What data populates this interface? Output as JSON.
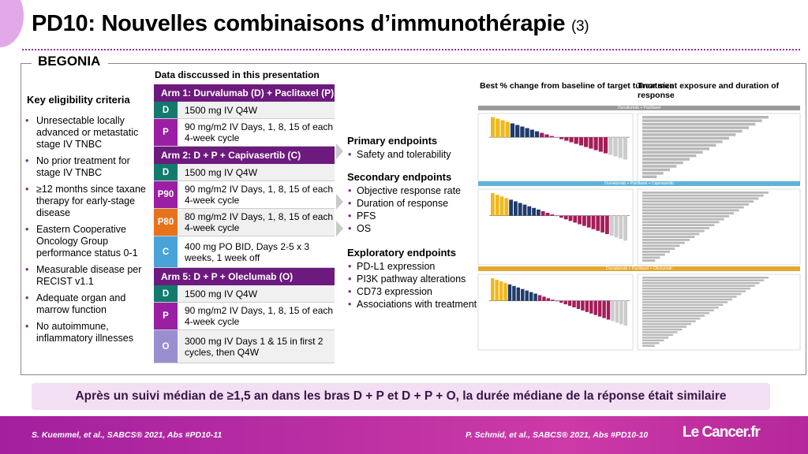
{
  "title": {
    "main": "PD10: Nouvelles combinaisons d’immunothérapie",
    "suffix": "(3)"
  },
  "study": "BEGONIA",
  "criteria": {
    "heading": "Key eligibility criteria",
    "items": [
      "Unresectable locally advanced or metastatic stage IV TNBC",
      "No prior treatment for stage IV TNBC",
      "≥12 months since taxane therapy for early-stage disease",
      "Eastern Cooperative Oncology Group performance status 0-1",
      "Measurable disease per RECIST v1.1",
      "Adequate organ and marrow function",
      "No autoimmune, inflammatory illnesses"
    ]
  },
  "data_title": "Data disccussed in this presentation",
  "arms": [
    {
      "header": "Arm 1: Durvalumab (D) + Paclitaxel (P)",
      "rows": [
        {
          "badge": "D",
          "color": "#137a6e",
          "text": "1500 mg IV Q4W"
        },
        {
          "badge": "P",
          "color": "#9b1fa3",
          "text": "90 mg/m2 IV Days, 1, 8, 15 of each 4-week cycle"
        }
      ]
    },
    {
      "header": "Arm 2: D + P + Capivasertib (C)",
      "rows": [
        {
          "badge": "D",
          "color": "#137a6e",
          "text": "1500 mg IV Q4W"
        },
        {
          "badge": "P90",
          "color": "#9b1fa3",
          "text": "90 mg/m2 IV Days, 1, 8, 15 of each 4-week cycle"
        },
        {
          "badge": "P80",
          "color": "#e8721c",
          "text": "80 mg/m2 IV Days, 1, 8, 15 of each 4-week cycle"
        },
        {
          "badge": "C",
          "color": "#4aa3d8",
          "text": "400 mg PO BID, Days 2-5 x 3 weeks, 1 week off"
        }
      ]
    },
    {
      "header": "Arm 5: D + P + Oleclumab (O)",
      "rows": [
        {
          "badge": "D",
          "color": "#137a6e",
          "text": "1500 mg IV Q4W"
        },
        {
          "badge": "P",
          "color": "#9b1fa3",
          "text": "90 mg/m2 IV Days, 1, 8, 15 of each 4-week cycle"
        },
        {
          "badge": "O",
          "color": "#9a8ed0",
          "text": "3000 mg IV Days 1 & 15 in first 2 cycles, then Q4W"
        }
      ]
    }
  ],
  "endpoints": [
    {
      "heading": "Primary endpoints",
      "items": [
        "Safety and tolerability"
      ]
    },
    {
      "heading": "Secondary endpoints",
      "items": [
        "Objective response rate",
        "Duration of response",
        "PFS",
        "OS"
      ]
    },
    {
      "heading": "Exploratory endpoints",
      "items": [
        "PD-L1 expression",
        "PI3K pathway alterations",
        "CD73 expression",
        "Associations with treatment benefit"
      ]
    }
  ],
  "charts": {
    "left_title": "Best % change from baseline of target tumor size",
    "right_title": "Treatment exposure and duration of response",
    "bands": [
      "Durvalumab + Paclitaxel",
      "Durvalumab + Paclitaxel + Capivasertib",
      "Durvalumab + Paclitaxel + Oleclumab"
    ]
  },
  "banner": "Après un suivi médian de ≥1,5 an dans les bras D + P et D + P + O, la durée médiane de la réponse était similaire",
  "footer": {
    "left": "S. Kuemmel, et al., SABCS® 2021, Abs #PD10-11",
    "right": "P. Schmid, et al., SABCS® 2021, Abs #PD10-10",
    "logo": "Le Cancer.fr"
  }
}
